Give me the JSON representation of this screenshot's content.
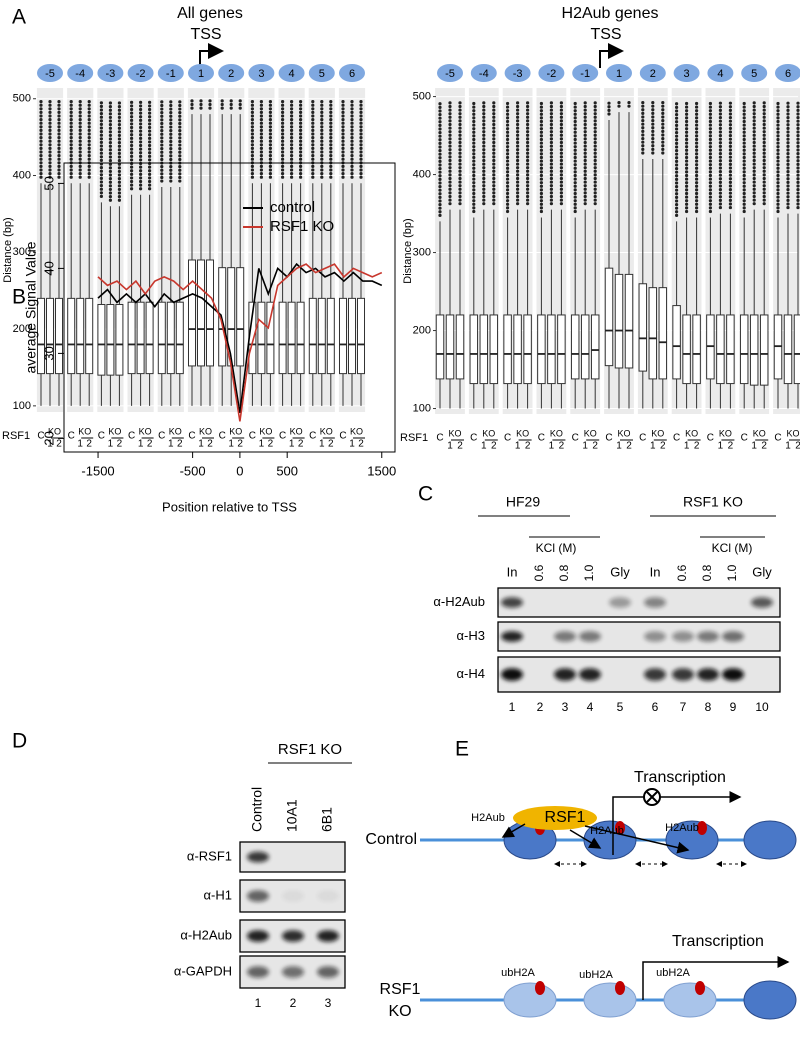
{
  "panel_labels": [
    "A",
    "B",
    "C",
    "D",
    "E"
  ],
  "chart_data": [
    {
      "type": "box",
      "title": "All genes",
      "annotation": "TSS",
      "ylabel": "Distance (bp)",
      "categories": [
        "-5",
        "-4",
        "-3",
        "-2",
        "-1",
        "1",
        "2",
        "3",
        "4",
        "5",
        "6"
      ],
      "ylim": [
        92,
        514
      ],
      "yticks": [
        100,
        200,
        300,
        400,
        500
      ],
      "grid": true,
      "color": "#7fa8e0",
      "sample_labels": {
        "row": "RSF1",
        "control": "C",
        "ko": "KO",
        "replicates": [
          "1",
          "2"
        ]
      },
      "series": [
        {
          "boxes": [
            [
              100,
              142,
              180,
              240,
              390
            ],
            [
              100,
              142,
              180,
              240,
              390
            ],
            [
              100,
              140,
              180,
              232,
              365
            ],
            [
              100,
              142,
              180,
              235,
              375
            ],
            [
              100,
              142,
              180,
              235,
              385
            ],
            [
              100,
              152,
              200,
              290,
              480
            ],
            [
              100,
              152,
              200,
              280,
              480
            ],
            [
              100,
              142,
              180,
              235,
              390
            ],
            [
              100,
              142,
              180,
              235,
              390
            ],
            [
              100,
              142,
              180,
              240,
              390
            ],
            [
              100,
              142,
              180,
              240,
              390
            ]
          ]
        },
        {
          "boxes": [
            [
              100,
              142,
              180,
              240,
              390
            ],
            [
              100,
              142,
              180,
              240,
              390
            ],
            [
              100,
              140,
              180,
              232,
              360
            ],
            [
              100,
              142,
              180,
              235,
              375
            ],
            [
              100,
              142,
              180,
              235,
              385
            ],
            [
              100,
              152,
              200,
              290,
              480
            ],
            [
              100,
              152,
              200,
              280,
              480
            ],
            [
              100,
              142,
              180,
              235,
              390
            ],
            [
              100,
              142,
              180,
              235,
              390
            ],
            [
              100,
              142,
              180,
              240,
              390
            ],
            [
              100,
              142,
              180,
              240,
              390
            ]
          ]
        },
        {
          "boxes": [
            [
              100,
              142,
              180,
              240,
              390
            ],
            [
              100,
              142,
              180,
              240,
              390
            ],
            [
              100,
              140,
              180,
              232,
              360
            ],
            [
              100,
              142,
              180,
              235,
              375
            ],
            [
              100,
              142,
              180,
              235,
              385
            ],
            [
              100,
              152,
              200,
              290,
              480
            ],
            [
              100,
              152,
              200,
              280,
              480
            ],
            [
              100,
              142,
              180,
              235,
              390
            ],
            [
              100,
              142,
              180,
              235,
              390
            ],
            [
              100,
              142,
              180,
              240,
              390
            ],
            [
              100,
              142,
              180,
              240,
              390
            ]
          ]
        }
      ]
    },
    {
      "type": "box",
      "title": "H2Aub genes",
      "annotation": "TSS",
      "ylabel": "Distance (bp)",
      "categories": [
        "-5",
        "-4",
        "-3",
        "-2",
        "-1",
        "1",
        "2",
        "3",
        "4",
        "5",
        "6"
      ],
      "ylim": [
        93,
        511
      ],
      "yticks": [
        100,
        200,
        300,
        400,
        500
      ],
      "grid": true,
      "color": "#7fa8e0",
      "sample_labels": {
        "row": "RSF1",
        "control": "C",
        "ko": "KO",
        "replicates": [
          "1",
          "2"
        ]
      },
      "series": [
        {
          "boxes": [
            [
              100,
              138,
              170,
              220,
              340
            ],
            [
              100,
              132,
              170,
              220,
              345
            ],
            [
              100,
              132,
              170,
              220,
              345
            ],
            [
              100,
              132,
              170,
              220,
              345
            ],
            [
              100,
              138,
              170,
              220,
              345
            ],
            [
              100,
              155,
              200,
              280,
              470
            ],
            [
              100,
              148,
              190,
              260,
              420
            ],
            [
              100,
              138,
              180,
              232,
              340
            ],
            [
              100,
              138,
              180,
              220,
              345
            ],
            [
              100,
              132,
              170,
              220,
              345
            ],
            [
              100,
              138,
              180,
              220,
              345
            ]
          ]
        },
        {
          "boxes": [
            [
              100,
              138,
              170,
              220,
              355
            ],
            [
              100,
              132,
              170,
              220,
              355
            ],
            [
              100,
              132,
              170,
              220,
              355
            ],
            [
              100,
              132,
              170,
              220,
              355
            ],
            [
              100,
              138,
              170,
              220,
              355
            ],
            [
              100,
              152,
              200,
              272,
              480
            ],
            [
              100,
              138,
              190,
              255,
              420
            ],
            [
              100,
              132,
              170,
              220,
              345
            ],
            [
              100,
              132,
              170,
              220,
              350
            ],
            [
              100,
              130,
              170,
              220,
              355
            ],
            [
              100,
              132,
              170,
              220,
              350
            ]
          ]
        },
        {
          "boxes": [
            [
              100,
              138,
              170,
              220,
              355
            ],
            [
              100,
              132,
              170,
              220,
              355
            ],
            [
              100,
              132,
              170,
              220,
              355
            ],
            [
              100,
              132,
              170,
              220,
              355
            ],
            [
              100,
              138,
              175,
              220,
              355
            ],
            [
              100,
              152,
              200,
              272,
              480
            ],
            [
              100,
              138,
              185,
              255,
              420
            ],
            [
              100,
              132,
              170,
              220,
              345
            ],
            [
              100,
              132,
              170,
              220,
              350
            ],
            [
              100,
              130,
              170,
              220,
              355
            ],
            [
              100,
              132,
              170,
              220,
              350
            ]
          ]
        }
      ]
    },
    {
      "type": "line",
      "xlabel": "Position relative to TSS",
      "ylabel": "average Signal Value",
      "x": [
        -1500,
        -1400,
        -1300,
        -1200,
        -1100,
        -1000,
        -900,
        -800,
        -700,
        -600,
        -500,
        -400,
        -300,
        -200,
        -100,
        0,
        100,
        200,
        300,
        400,
        500,
        600,
        700,
        800,
        900,
        1000,
        1100,
        1200,
        1300,
        1400,
        1500
      ],
      "xlim": [
        -1860,
        1640
      ],
      "xticks": [
        -1500,
        -500,
        0,
        500,
        1500
      ],
      "ylim": [
        18.4,
        52.4
      ],
      "yticks": [
        20,
        30,
        40,
        50
      ],
      "legend": "top-right",
      "series": [
        {
          "name": "control",
          "color": "#000000",
          "values": [
            36.5,
            37.5,
            36,
            37,
            36,
            37,
            35.5,
            37,
            36,
            36.5,
            37,
            36.5,
            35.5,
            34.5,
            30,
            23,
            32,
            40,
            37,
            40,
            39,
            40.5,
            39.5,
            40,
            39,
            39.5,
            38.5,
            39.5,
            38.5,
            38.5,
            38
          ]
        },
        {
          "name": "RSF1 KO",
          "color": "#c8372d",
          "values": [
            39,
            38,
            38.5,
            37.5,
            38.5,
            37,
            38.5,
            39,
            38.5,
            37.5,
            38.5,
            37.5,
            36.5,
            34,
            29,
            22,
            30,
            34,
            33,
            38,
            39,
            40,
            40.5,
            39.5,
            40,
            40.5,
            39,
            40,
            39.5,
            39,
            39.5
          ]
        }
      ]
    }
  ],
  "blot_c": {
    "groups": [
      "HF29",
      "RSF1 KO"
    ],
    "condition": "KCl (M)",
    "lanes": [
      "In",
      "0.6",
      "0.8",
      "1.0",
      "Gly",
      "In",
      "0.6",
      "0.8",
      "1.0",
      "Gly"
    ],
    "rows": [
      "α-H2Aub",
      "α-H3",
      "α-H4"
    ],
    "lane_numbers": [
      "1",
      "2",
      "3",
      "4",
      "5",
      "6",
      "7",
      "8",
      "9",
      "10"
    ]
  },
  "blot_d": {
    "group": "RSF1 KO",
    "lanes": [
      "Control",
      "10A1",
      "6B1"
    ],
    "rows": [
      "α-RSF1",
      "α-H1",
      "α-H2Aub",
      "α-GAPDH"
    ],
    "lane_numbers": [
      "1",
      "2",
      "3"
    ]
  },
  "diagram_e": {
    "enzyme": "RSF1",
    "control": {
      "label": "Control",
      "transcription": "Transcription",
      "marks": [
        "H2Aub",
        "H2Aub",
        "H2Aub"
      ]
    },
    "ko": {
      "label": [
        "RSF1",
        "KO"
      ],
      "transcription": "Transcription",
      "marks": [
        "ubH2A",
        "ubH2A",
        "ubH2A"
      ]
    }
  }
}
